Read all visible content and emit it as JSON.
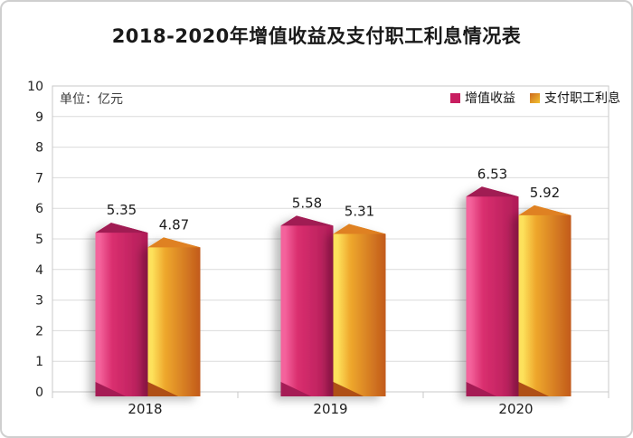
{
  "title": "2018-2020年增值收益及支付职工利息情况表",
  "unit_label": "单位：亿元",
  "legend": {
    "items": [
      {
        "label": "增值收益",
        "swatch_from": "#C81E60",
        "swatch_to": "#C81E60"
      },
      {
        "label": "支付职工利息",
        "swatch_from": "#F2C230",
        "swatch_to": "#CE6A1E"
      }
    ]
  },
  "chart_data": {
    "type": "bar",
    "title": "2018-2020年增值收益及支付职工利息情况表",
    "categories": [
      "2018",
      "2019",
      "2020"
    ],
    "series": [
      {
        "name": "增值收益",
        "values": [
          5.35,
          5.58,
          6.53
        ],
        "color_light": "#F4639C",
        "color_main": "#DA2F6F",
        "color_dark": "#AF1C57",
        "color_top": "#A01B53",
        "color_bottom": "#A51C55"
      },
      {
        "name": "支付职工利息",
        "values": [
          4.87,
          5.31,
          5.92
        ],
        "color_light": "#FDE15C",
        "color_main": "#EFA92D",
        "color_dark": "#C25A1B",
        "color_top": "#DF8120",
        "color_bottom": "#AF4F15"
      }
    ],
    "xlabel": "",
    "ylabel": "",
    "unit": "亿元",
    "ylim": [
      0,
      10
    ],
    "yticks": [
      0,
      1,
      2,
      3,
      4,
      5,
      6,
      7,
      8,
      9,
      10
    ],
    "grid": true,
    "legend_position": "top-right",
    "gridline_color": "#DBDBDB",
    "axis_color": "#C9C9C9",
    "label_color": "#1f1f1f"
  }
}
